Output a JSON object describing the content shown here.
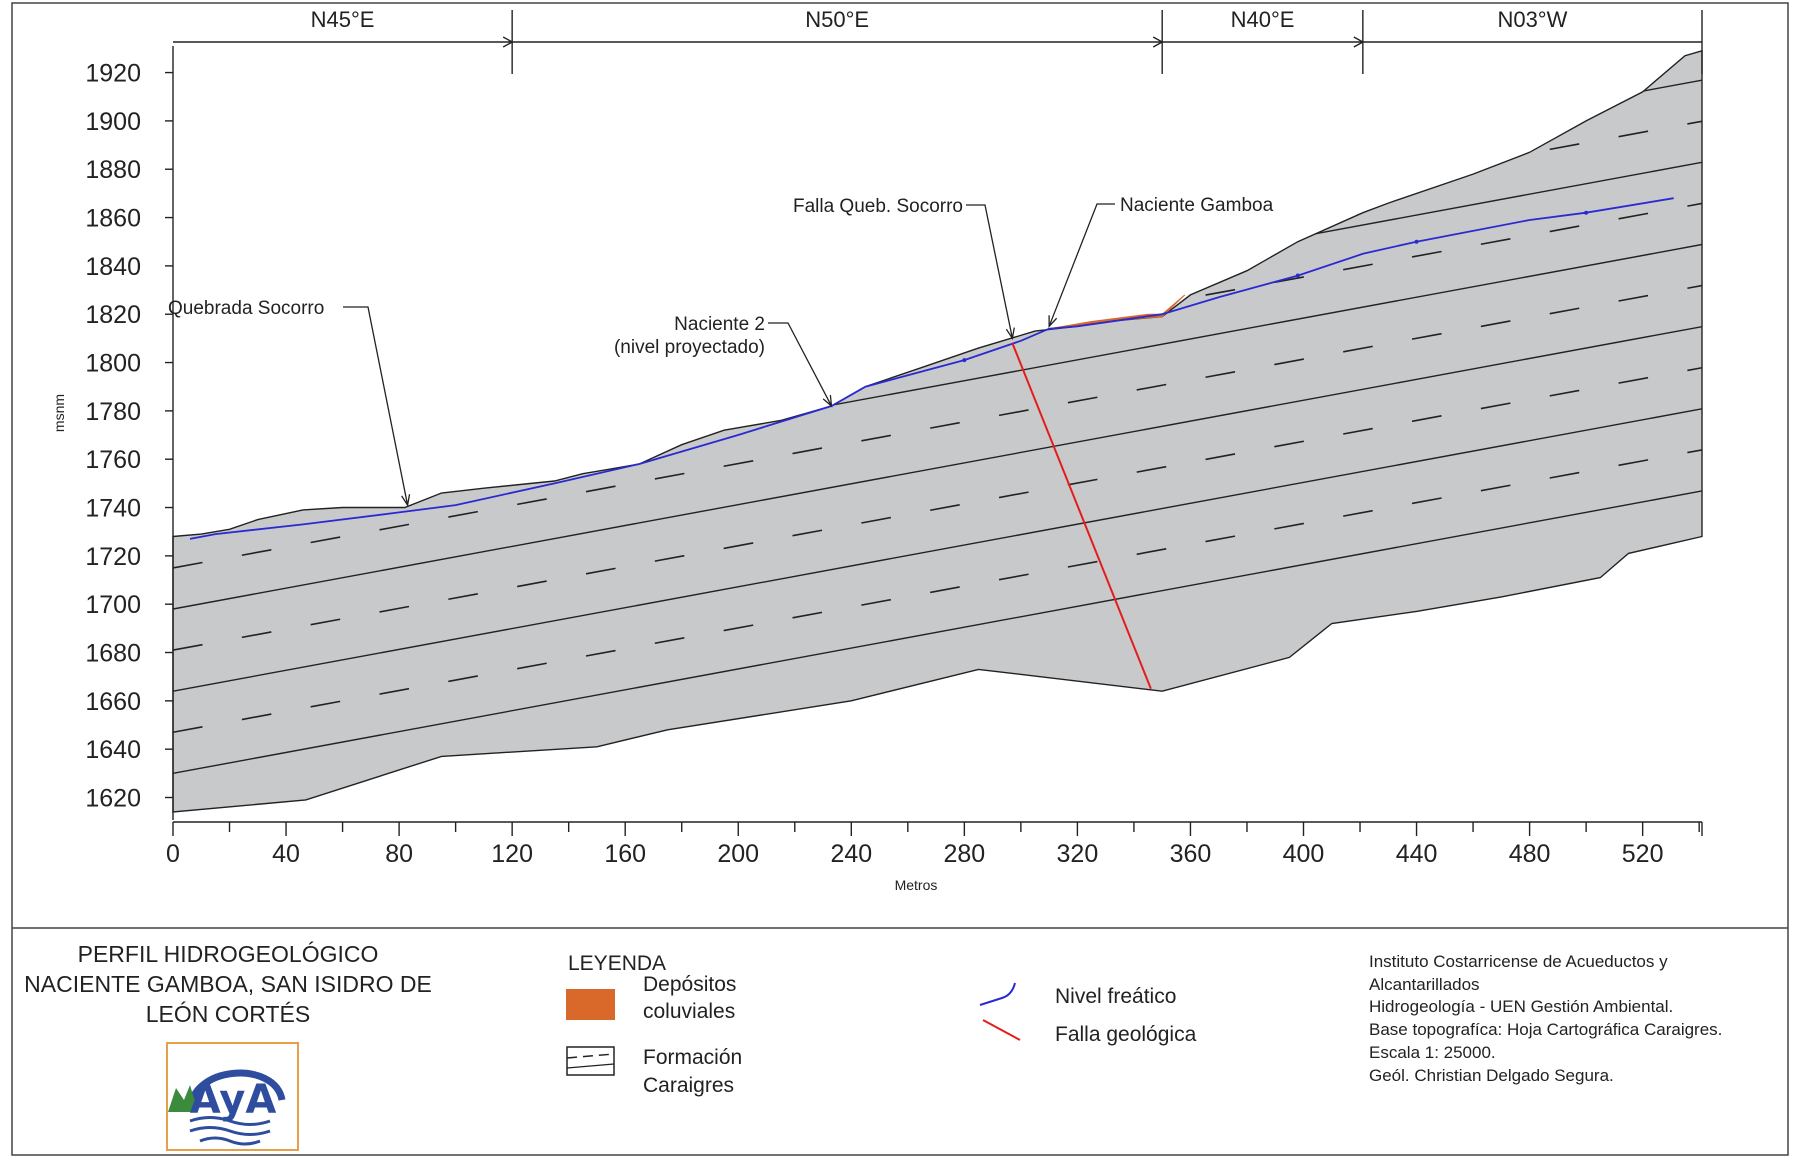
{
  "directions": [
    {
      "label": "N45°E",
      "from_m": 0,
      "to_m": 120
    },
    {
      "label": "N50°E",
      "from_m": 120,
      "to_m": 350
    },
    {
      "label": "N40°E",
      "from_m": 350,
      "to_m": 421
    },
    {
      "label": "N03°W",
      "from_m": 421,
      "to_m": 541
    }
  ],
  "axes": {
    "y_label": "msnm",
    "x_label": "Metros",
    "y_ticks": [
      1620,
      1640,
      1660,
      1680,
      1700,
      1720,
      1740,
      1760,
      1780,
      1800,
      1820,
      1840,
      1860,
      1880,
      1900,
      1920
    ],
    "x_ticks": [
      0,
      40,
      80,
      120,
      160,
      200,
      240,
      280,
      320,
      360,
      400,
      440,
      480,
      520
    ],
    "y_range": [
      1614,
      1931
    ],
    "x_range": [
      0,
      541
    ]
  },
  "profile": {
    "surface": [
      [
        0,
        1728
      ],
      [
        10,
        1729
      ],
      [
        20,
        1731
      ],
      [
        30,
        1735
      ],
      [
        46,
        1739
      ],
      [
        60,
        1740
      ],
      [
        82,
        1740
      ],
      [
        95,
        1746
      ],
      [
        110,
        1748
      ],
      [
        135,
        1751
      ],
      [
        145,
        1754
      ],
      [
        155,
        1756
      ],
      [
        165,
        1758
      ],
      [
        180,
        1766
      ],
      [
        195,
        1772
      ],
      [
        215,
        1776
      ],
      [
        233,
        1782
      ],
      [
        245,
        1790
      ],
      [
        265,
        1798
      ],
      [
        285,
        1806
      ],
      [
        305,
        1813
      ],
      [
        320,
        1815
      ],
      [
        330,
        1817
      ],
      [
        350,
        1819
      ],
      [
        360,
        1828
      ],
      [
        380,
        1838
      ],
      [
        398,
        1850
      ],
      [
        421,
        1862
      ],
      [
        430,
        1866
      ],
      [
        460,
        1878
      ],
      [
        480,
        1887
      ],
      [
        500,
        1900
      ],
      [
        520,
        1912
      ],
      [
        535,
        1927
      ],
      [
        541,
        1929
      ]
    ],
    "bottom": [
      [
        0,
        1614
      ],
      [
        47,
        1619
      ],
      [
        95,
        1637
      ],
      [
        150,
        1641
      ],
      [
        175,
        1648
      ],
      [
        240,
        1660
      ],
      [
        285,
        1673
      ],
      [
        350,
        1664
      ],
      [
        395,
        1678
      ],
      [
        410,
        1692
      ],
      [
        440,
        1697
      ],
      [
        470,
        1703
      ],
      [
        505,
        1711
      ],
      [
        515,
        1721
      ],
      [
        541,
        1728
      ]
    ],
    "water_table": [
      [
        6,
        1727
      ],
      [
        15,
        1729
      ],
      [
        46,
        1733
      ],
      [
        80,
        1738
      ],
      [
        100,
        1741
      ],
      [
        135,
        1750
      ],
      [
        165,
        1758
      ],
      [
        200,
        1770
      ],
      [
        233,
        1782
      ],
      [
        245,
        1790
      ],
      [
        280,
        1801
      ],
      [
        300,
        1809
      ],
      [
        310,
        1814
      ],
      [
        320,
        1815
      ],
      [
        350,
        1820
      ],
      [
        370,
        1827
      ],
      [
        398,
        1836
      ],
      [
        421,
        1845
      ],
      [
        440,
        1850
      ],
      [
        480,
        1859
      ],
      [
        500,
        1862
      ],
      [
        531,
        1868
      ]
    ],
    "colluvium": [
      [
        310,
        1814
      ],
      [
        325,
        1817
      ],
      [
        345,
        1820
      ],
      [
        350,
        1820
      ],
      [
        358,
        1828
      ],
      [
        350,
        1819
      ],
      [
        330,
        1817
      ],
      [
        320,
        1815
      ]
    ],
    "fault": [
      [
        297,
        1808
      ],
      [
        346,
        1665
      ]
    ],
    "strata_left_elevations": [
      1630,
      1647,
      1663,
      1680,
      1695,
      1712
    ],
    "strata_gradient": 0.216
  },
  "callouts": [
    {
      "name": "callout-quebrada-socorro",
      "lines": [
        "Quebrada Socorro"
      ],
      "target": [
        83,
        1741
      ]
    },
    {
      "name": "callout-naciente-2",
      "lines": [
        "Naciente 2",
        "(nivel proyectado)"
      ],
      "target": [
        233,
        1782
      ]
    },
    {
      "name": "callout-falla-queb-socorro",
      "lines": [
        "Falla Queb. Socorro"
      ],
      "target": [
        297,
        1810
      ]
    },
    {
      "name": "callout-naciente-gamboa",
      "lines": [
        "Naciente Gamboa"
      ],
      "target": [
        310,
        1815
      ]
    }
  ],
  "title": {
    "lines": [
      "PERFIL HIDROGEOLÓGICO",
      "NACIENTE GAMBOA, SAN ISIDRO DE",
      "LEÓN CORTÉS"
    ]
  },
  "logo_text": "AyA",
  "legend": {
    "heading": "LEYENDA",
    "items": [
      {
        "name": "legend-colluvium",
        "lines": [
          "Depósitos",
          "coluviales"
        ]
      },
      {
        "name": "legend-formation",
        "lines": [
          "Formación",
          "Caraigres"
        ]
      },
      {
        "name": "legend-water-table",
        "lines": [
          "Nivel freático"
        ]
      },
      {
        "name": "legend-fault",
        "lines": [
          "Falla geológica"
        ]
      }
    ]
  },
  "credits": [
    "Instituto Costarricense de Acueductos y",
    "Alcantarillados",
    "Hidrogeología - UEN Gestión Ambiental.",
    "Base topografíca: Hoja Cartográfica Caraigres.",
    "Escala 1: 25000.",
    "Geól. Christian Delgado Segura."
  ],
  "colors": {
    "rock": "#c8c9cb",
    "water_table": "#2a2ad0",
    "fault": "#e51c1c",
    "colluvium": "#d8692a",
    "line": "#222222",
    "logo_blue": "#2f4d9e",
    "logo_frame": "#e7a04a",
    "logo_green": "#3c8a3c"
  }
}
